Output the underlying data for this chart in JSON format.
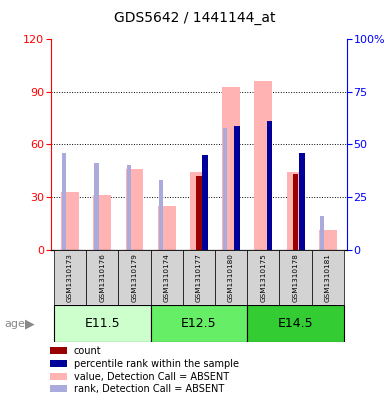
{
  "title": "GDS5642 / 1441144_at",
  "samples": [
    "GSM1310173",
    "GSM1310176",
    "GSM1310179",
    "GSM1310174",
    "GSM1310177",
    "GSM1310180",
    "GSM1310175",
    "GSM1310178",
    "GSM1310181"
  ],
  "age_groups": [
    {
      "label": "E11.5",
      "start": 0,
      "end": 3
    },
    {
      "label": "E12.5",
      "start": 3,
      "end": 6
    },
    {
      "label": "E14.5",
      "start": 6,
      "end": 9
    }
  ],
  "value_absent": [
    33,
    31,
    46,
    25,
    44,
    93,
    96,
    44,
    11
  ],
  "rank_absent": [
    46,
    41,
    40,
    33,
    null,
    58,
    null,
    null,
    16
  ],
  "count": [
    0,
    0,
    0,
    0,
    42,
    0,
    0,
    43,
    0
  ],
  "percentile": [
    0,
    0,
    0,
    0,
    45,
    59,
    61,
    46,
    0
  ],
  "left_ylim": [
    0,
    120
  ],
  "right_ylim": [
    0,
    100
  ],
  "left_yticks": [
    0,
    30,
    60,
    90,
    120
  ],
  "right_yticks": [
    0,
    25,
    50,
    75,
    100
  ],
  "right_yticklabels": [
    "0",
    "25",
    "50",
    "75",
    "100%"
  ],
  "color_value_absent": "#FFB3B3",
  "color_rank_absent": "#AAAADD",
  "color_count": "#990000",
  "color_percentile": "#000099",
  "age_colors": [
    "#CCFFCC",
    "#66EE66",
    "#33CC33"
  ],
  "fig_width": 3.9,
  "fig_height": 3.93
}
